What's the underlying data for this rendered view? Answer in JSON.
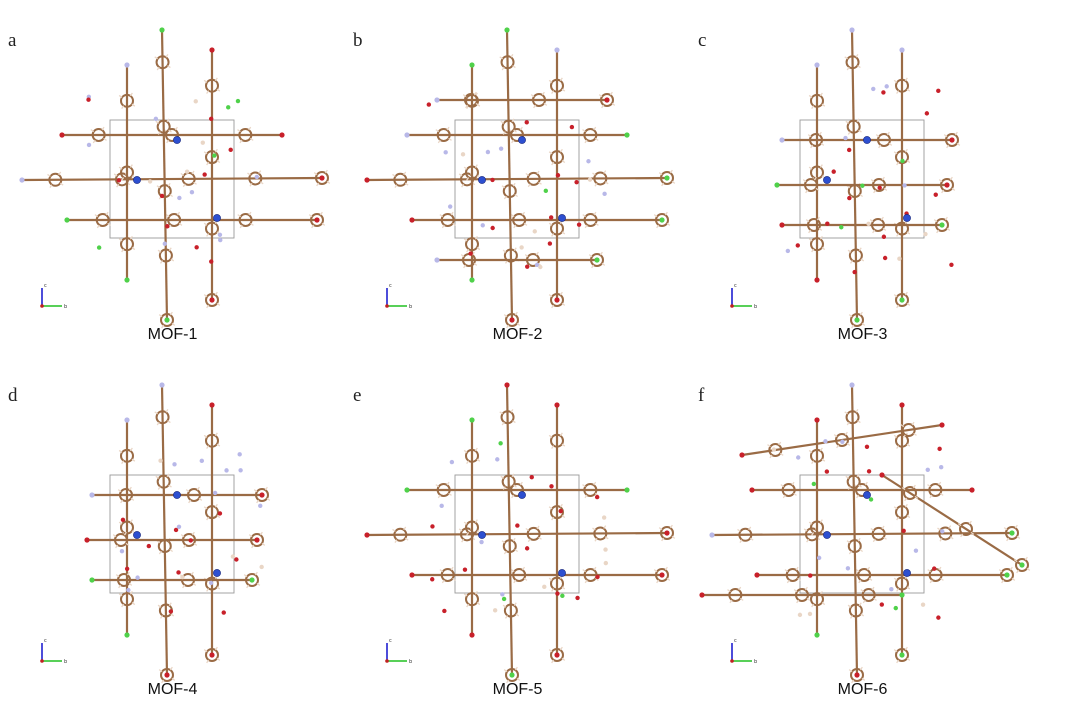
{
  "panels": [
    {
      "letter": "a",
      "title": "MOF-1",
      "seed": 11,
      "shape": "cross"
    },
    {
      "letter": "b",
      "title": "MOF-2",
      "seed": 23,
      "shape": "dense"
    },
    {
      "letter": "c",
      "title": "MOF-3",
      "seed": 37,
      "shape": "tall"
    },
    {
      "letter": "d",
      "title": "MOF-4",
      "seed": 41,
      "shape": "tall"
    },
    {
      "letter": "e",
      "title": "MOF-5",
      "seed": 53,
      "shape": "cross"
    },
    {
      "letter": "f",
      "title": "MOF-6",
      "seed": 67,
      "shape": "spread"
    }
  ],
  "axis": {
    "c_label": "c",
    "b_label": "b"
  },
  "colors": {
    "carbon": "#9a6b45",
    "hydrogen": "#e9d6c6",
    "oxygen": "#c8202a",
    "nitrogen": "#b8b8e8",
    "chlorine": "#4fd14a",
    "metal": "#2d4fd0",
    "cell": "#9a9a9a",
    "axis_c": "#2020d0",
    "axis_b": "#20c020"
  }
}
